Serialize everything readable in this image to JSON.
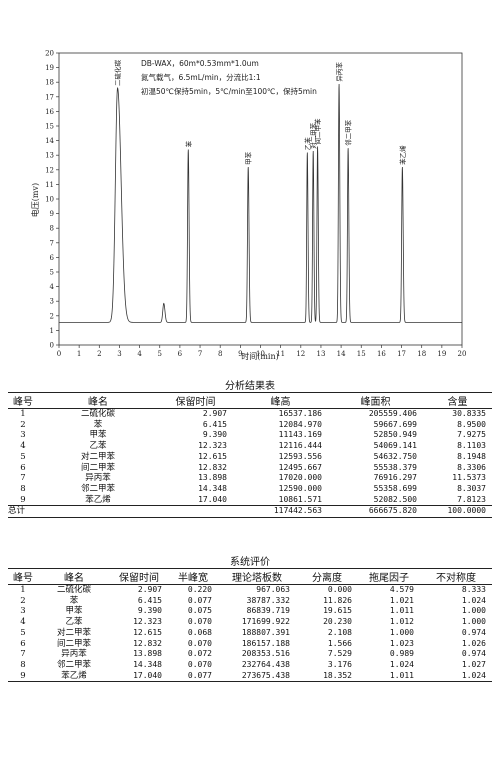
{
  "chart_data": {
    "type": "line",
    "xlabel": "时间(min)",
    "ylabel": "电压(mv)",
    "xlim": [
      0,
      20
    ],
    "ylim": [
      0,
      20
    ],
    "xticks": [
      0,
      1,
      2,
      3,
      4,
      5,
      6,
      7,
      8,
      9,
      10,
      11,
      12,
      13,
      14,
      15,
      16,
      17,
      18,
      19,
      20
    ],
    "yticks": [
      0,
      1,
      2,
      3,
      4,
      5,
      6,
      7,
      8,
      9,
      10,
      11,
      12,
      13,
      14,
      15,
      16,
      17,
      18,
      19,
      20
    ],
    "baseline": 1.55,
    "notes": [
      "DB-WAX，60m*0.53mm*1.0um",
      "氮气载气，6.5mL/min，分流比1:1",
      "初温50℃保持5min，5℃/min至100℃，保持5min"
    ],
    "peaks": [
      {
        "label": "二硫化碳",
        "x": 2.907,
        "y": 17.6,
        "w": 0.11
      },
      {
        "label": "",
        "x": 5.2,
        "y": 2.85,
        "w": 0.05
      },
      {
        "label": "苯",
        "x": 6.415,
        "y": 13.4,
        "w": 0.035
      },
      {
        "label": "甲苯",
        "x": 9.39,
        "y": 12.2,
        "w": 0.035
      },
      {
        "label": "乙苯",
        "x": 12.323,
        "y": 13.2,
        "w": 0.03
      },
      {
        "label": "对二甲苯",
        "x": 12.615,
        "y": 13.3,
        "w": 0.03
      },
      {
        "label": "间二甲苯",
        "x": 12.832,
        "y": 13.6,
        "w": 0.03
      },
      {
        "label": "异丙苯",
        "x": 13.898,
        "y": 17.9,
        "w": 0.032
      },
      {
        "label": "邻二甲苯",
        "x": 14.348,
        "y": 13.5,
        "w": 0.032
      },
      {
        "label": "苯乙烯",
        "x": 17.04,
        "y": 12.2,
        "w": 0.035
      }
    ]
  },
  "analysis": {
    "title": "分析结果表",
    "headers": [
      "峰号",
      "峰名",
      "保留时间",
      "峰高",
      "峰面积",
      "含量"
    ],
    "rows": [
      [
        "1",
        "二硫化碳",
        "2.907",
        "16537.186",
        "205559.406",
        "30.8335"
      ],
      [
        "2",
        "苯",
        "6.415",
        "12084.970",
        "59667.699",
        "8.9500"
      ],
      [
        "3",
        "甲苯",
        "9.390",
        "11143.169",
        "52850.949",
        "7.9275"
      ],
      [
        "4",
        "乙苯",
        "12.323",
        "12116.444",
        "54069.141",
        "8.1103"
      ],
      [
        "5",
        "对二甲苯",
        "12.615",
        "12593.556",
        "54632.750",
        "8.1948"
      ],
      [
        "6",
        "间二甲苯",
        "12.832",
        "12495.667",
        "55538.379",
        "8.3306"
      ],
      [
        "7",
        "异丙苯",
        "13.898",
        "17020.000",
        "76916.297",
        "11.5373"
      ],
      [
        "8",
        "邻二甲苯",
        "14.348",
        "12590.000",
        "55358.699",
        "8.3037"
      ],
      [
        "9",
        "苯乙烯",
        "17.040",
        "10861.571",
        "52082.500",
        "7.8123"
      ]
    ],
    "total": [
      "总计",
      "",
      "",
      "117442.563",
      "666675.820",
      "100.0000"
    ]
  },
  "evaluation": {
    "title": "系统评价",
    "headers": [
      "峰号",
      "峰名",
      "保留时间",
      "半峰宽",
      "理论塔板数",
      "分离度",
      "拖尾因子",
      "不对称度"
    ],
    "rows": [
      [
        "1",
        "二硫化碳",
        "2.907",
        "0.220",
        "967.063",
        "0.000",
        "4.579",
        "8.333"
      ],
      [
        "2",
        "苯",
        "6.415",
        "0.077",
        "38787.332",
        "11.826",
        "1.021",
        "1.024"
      ],
      [
        "3",
        "甲苯",
        "9.390",
        "0.075",
        "86839.719",
        "19.615",
        "1.011",
        "1.000"
      ],
      [
        "4",
        "乙苯",
        "12.323",
        "0.070",
        "171699.922",
        "20.230",
        "1.012",
        "1.000"
      ],
      [
        "5",
        "对二甲苯",
        "12.615",
        "0.068",
        "188807.391",
        "2.108",
        "1.000",
        "0.974"
      ],
      [
        "6",
        "间二甲苯",
        "12.832",
        "0.070",
        "186157.188",
        "1.566",
        "1.023",
        "1.026"
      ],
      [
        "7",
        "异丙苯",
        "13.898",
        "0.072",
        "208353.516",
        "7.529",
        "0.989",
        "0.974"
      ],
      [
        "8",
        "邻二甲苯",
        "14.348",
        "0.070",
        "232764.438",
        "3.176",
        "1.024",
        "1.027"
      ],
      [
        "9",
        "苯乙烯",
        "17.040",
        "0.077",
        "273675.438",
        "18.352",
        "1.011",
        "1.024"
      ]
    ]
  }
}
